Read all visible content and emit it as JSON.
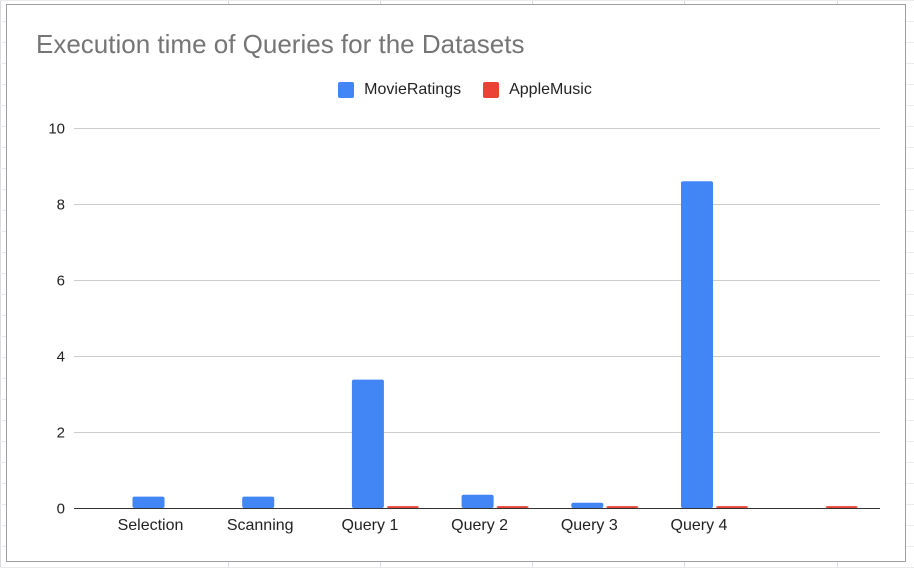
{
  "chart_data": {
    "type": "bar",
    "title": "Execution time of Queries for the Datasets",
    "xlabel": "",
    "ylabel": "",
    "categories": [
      "Selection",
      "Scanning",
      "Query 1",
      "Query 2",
      "Query 3",
      "Query 4",
      ""
    ],
    "series": [
      {
        "name": "MovieRatings",
        "color": "#4285f4",
        "values": [
          0.3,
          0.3,
          3.38,
          0.35,
          0.14,
          8.6,
          null
        ]
      },
      {
        "name": "AppleMusic",
        "color": "#ea4335",
        "values": [
          null,
          null,
          0.05,
          0.05,
          0.05,
          0.05,
          0.05
        ]
      }
    ],
    "ylim": [
      0,
      10
    ],
    "yticks": [
      0,
      2,
      4,
      6,
      8,
      10
    ],
    "grid": true,
    "legend_position": "top"
  }
}
